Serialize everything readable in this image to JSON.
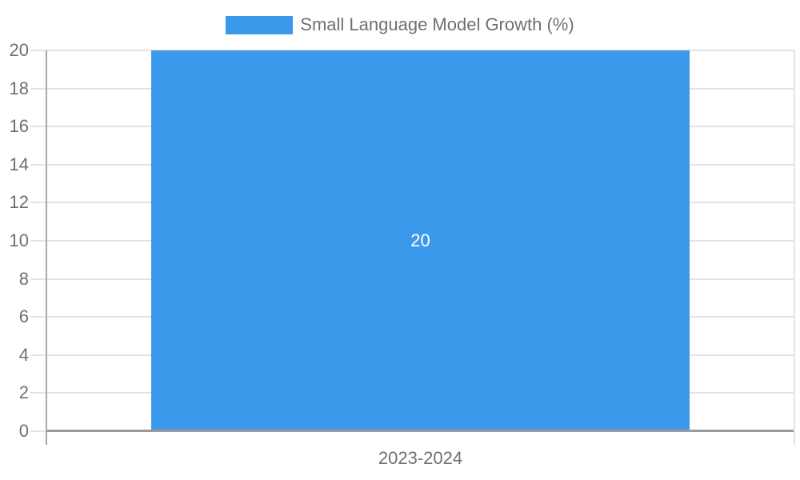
{
  "chart_data": {
    "type": "bar",
    "title": "",
    "legend": {
      "position": "top",
      "entries": [
        "Small Language Model Growth (%)"
      ]
    },
    "categories": [
      "2023-2024"
    ],
    "series": [
      {
        "name": "Small Language Model Growth (%)",
        "values": [
          20
        ],
        "data_labels": [
          "20"
        ]
      }
    ],
    "xlabel": "",
    "ylabel": "",
    "ylim": [
      0,
      20
    ],
    "ytick_step": 2,
    "ytick_labels": [
      "0",
      "2",
      "4",
      "6",
      "8",
      "10",
      "12",
      "14",
      "16",
      "18",
      "20"
    ],
    "grid": true,
    "colors": {
      "bar": "#3b99ec",
      "grid_line": "#e3e3e3",
      "axis_line": "#a6a6a6",
      "baseline": "#9b9b9b",
      "text": "#6f6f6f",
      "bar_label_text": "#ffffff",
      "background": "#ffffff"
    }
  }
}
